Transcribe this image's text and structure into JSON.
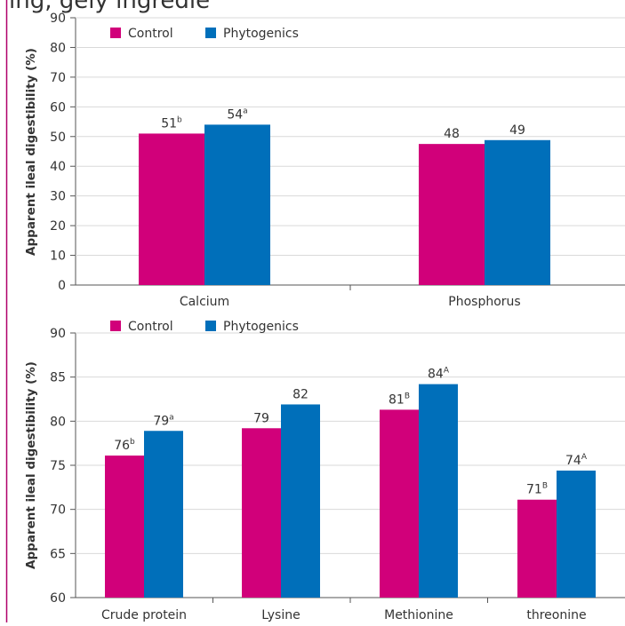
{
  "page": {
    "cropped_header_text": "ing, gely ingredie"
  },
  "colors": {
    "control": "#d1007a",
    "phytogenics": "#006fba",
    "border": "#b0006a",
    "axis": "#555555",
    "text": "#333333"
  },
  "chart_data": [
    {
      "type": "bar",
      "ylabel": "Apparent ileal digestibility (%)",
      "xlabel": "",
      "ylim": [
        0,
        90
      ],
      "yticks": [
        "0",
        "10",
        "20",
        "30",
        "40",
        "50",
        "60",
        "70",
        "80",
        "90"
      ],
      "legend": {
        "placement": "top-left",
        "entries": [
          "Control",
          "Phytogenics"
        ]
      },
      "categories": [
        "Calcium",
        "Phosphorus"
      ],
      "series": [
        {
          "name": "Control",
          "values": [
            51,
            47.5
          ],
          "labels": [
            "51",
            "48"
          ],
          "sup": [
            "b",
            ""
          ]
        },
        {
          "name": "Phytogenics",
          "values": [
            54,
            48.8
          ],
          "labels": [
            "54",
            "49"
          ],
          "sup": [
            "a",
            ""
          ]
        }
      ],
      "grid": true
    },
    {
      "type": "bar",
      "ylabel": "Apparent ileal digestibility (%)",
      "xlabel": "",
      "ylim": [
        60,
        90
      ],
      "yticks": [
        "60",
        "65",
        "70",
        "75",
        "80",
        "85",
        "90"
      ],
      "legend": {
        "placement": "top-left",
        "entries": [
          "Control",
          "Phytogenics"
        ]
      },
      "categories": [
        "Crude protein",
        "Lysine",
        "Methionine",
        "threonine"
      ],
      "series": [
        {
          "name": "Control",
          "values": [
            76.1,
            79.2,
            81.3,
            71.1
          ],
          "labels": [
            "76",
            "79",
            "81",
            "71"
          ],
          "sup": [
            "b",
            "",
            "B",
            "B"
          ]
        },
        {
          "name": "Phytogenics",
          "values": [
            78.9,
            81.9,
            84.2,
            74.4
          ],
          "labels": [
            "79",
            "82",
            "84",
            "74"
          ],
          "sup": [
            "a",
            "",
            "A",
            "A"
          ]
        }
      ],
      "grid": true
    }
  ]
}
